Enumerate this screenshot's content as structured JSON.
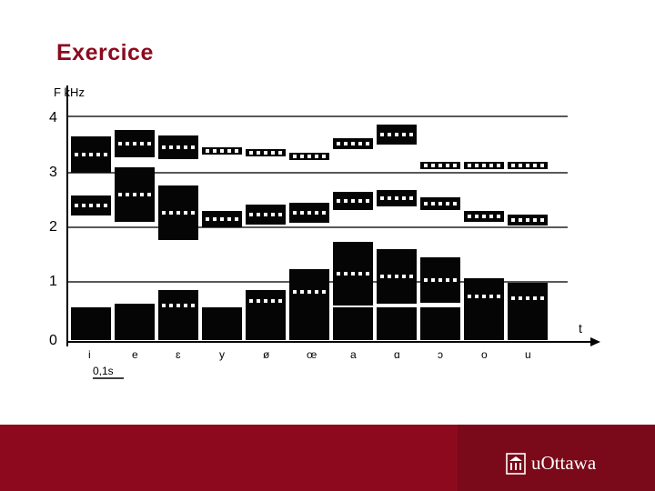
{
  "slide": {
    "title": "Exercice",
    "brand_color": "#8d0a1e"
  },
  "spectrogram": {
    "y_axis_label": "F kHz",
    "y_ticks": [
      "0",
      "1",
      "2",
      "3",
      "4"
    ],
    "x_axis_label": "t",
    "scale_label": "0,1s",
    "vowels": [
      "i",
      "e",
      "ɛ",
      "y",
      "ø",
      "œ",
      "a",
      "ɑ",
      "ɔ",
      "o",
      "u"
    ]
  },
  "footer": {
    "logo_text": "uOttawa",
    "logo_icon": "building-icon"
  }
}
